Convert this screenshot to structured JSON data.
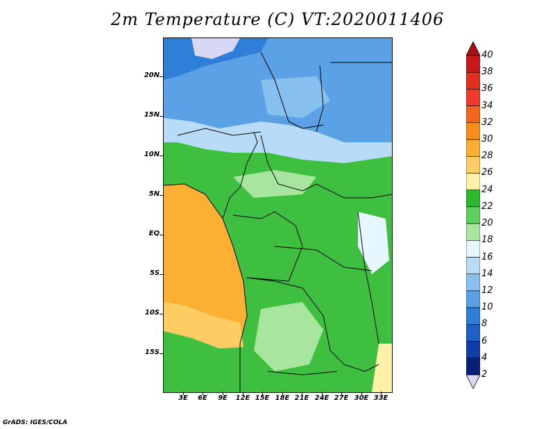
{
  "title": "2m Temperature (C) VT:2020011406",
  "footer": "GrADS: IGES/COLA",
  "chart_data": {
    "type": "heatmap",
    "title": "2m Temperature (C) VT:2020011406",
    "lat_ticks": [
      "20N",
      "15N",
      "10N",
      "5N",
      "EQ",
      "5S",
      "10S",
      "15S"
    ],
    "lat_values": [
      20,
      15,
      10,
      5,
      0,
      -5,
      -10,
      -15
    ],
    "lon_ticks": [
      "3E",
      "6E",
      "9E",
      "12E",
      "15E",
      "18E",
      "21E",
      "24E",
      "27E",
      "30E",
      "33E"
    ],
    "lon_values": [
      3,
      6,
      9,
      12,
      15,
      18,
      21,
      24,
      27,
      30,
      33
    ],
    "lon_range": [
      0,
      34.5
    ],
    "lat_range": [
      -19.8,
      25
    ],
    "colorbar": {
      "labels": [
        "40",
        "38",
        "36",
        "34",
        "32",
        "30",
        "28",
        "26",
        "24",
        "22",
        "20",
        "18",
        "16",
        "14",
        "12",
        "10",
        "8",
        "6",
        "4",
        "2"
      ],
      "colors": [
        "#a50f15",
        "#cb181d",
        "#e0301e",
        "#ef3b2c",
        "#f4651e",
        "#f98e1a",
        "#fbb034",
        "#fdcd64",
        "#fff2a8",
        "#2eb82e",
        "#5ed05e",
        "#a8e6a0",
        "#e6f7ff",
        "#b8dcf7",
        "#86c0ef",
        "#5aa1e6",
        "#2f7fd9",
        "#1f5fc8",
        "#0f3ea8",
        "#0a1f78",
        "#d8d8f5"
      ]
    }
  }
}
